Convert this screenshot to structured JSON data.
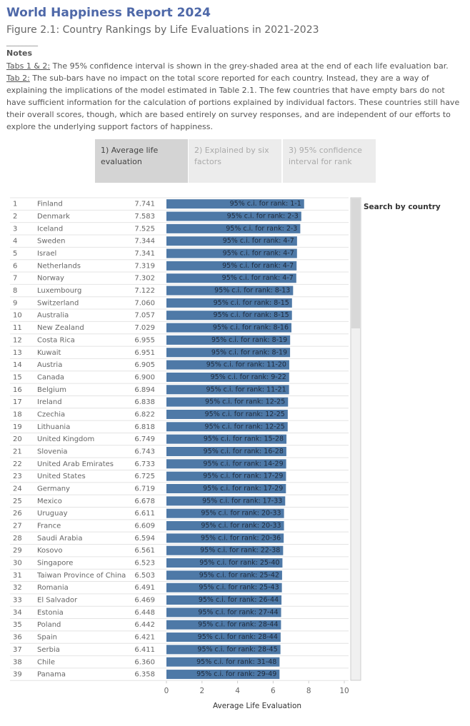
{
  "header": {
    "title": "World Happiness Report 2024",
    "subtitle": "Figure 2.1: Country Rankings by Life Evaluations in 2021-2023",
    "rule": "________"
  },
  "notes": {
    "title": "Notes",
    "items": [
      {
        "label": "Tabs 1 & 2:",
        "text": " The 95% confidence interval is shown in the grey-shaded area at the end of each life evaluation bar."
      },
      {
        "label": "Tab 2:",
        "text": " The sub-bars have no impact on the total score reported for each country. Instead, they are a way of explaining the implications of the model estimated in Table 2.1. The few countries that have empty bars do not have sufficient information for the calculation of portions explained by individual factors. These countries still have their overall scores, though, which are based entirely on survey responses, and are independent of our efforts to explore the underlying support factors of happiness."
      }
    ]
  },
  "tabs": [
    "1) Average life evaluation",
    "2) Explained by six factors",
    "3) 95% confidence interval for rank"
  ],
  "search_label": "Search by country",
  "chart_data": {
    "type": "bar",
    "orientation": "horizontal",
    "xlabel": "Average Life Evaluation",
    "xlim": [
      0,
      10
    ],
    "xticks": [
      0,
      2,
      4,
      6,
      8,
      10
    ],
    "color": "#4e79a7",
    "ranks": [
      1,
      2,
      3,
      4,
      5,
      6,
      7,
      8,
      9,
      10,
      11,
      12,
      13,
      14,
      15,
      16,
      17,
      18,
      19,
      20,
      21,
      22,
      23,
      24,
      25,
      26,
      27,
      28,
      29,
      30,
      31,
      32,
      33,
      34,
      35,
      36,
      37,
      38,
      39
    ],
    "categories": [
      "Finland",
      "Denmark",
      "Iceland",
      "Sweden",
      "Israel",
      "Netherlands",
      "Norway",
      "Luxembourg",
      "Switzerland",
      "Australia",
      "New Zealand",
      "Costa Rica",
      "Kuwait",
      "Austria",
      "Canada",
      "Belgium",
      "Ireland",
      "Czechia",
      "Lithuania",
      "United Kingdom",
      "Slovenia",
      "United Arab Emirates",
      "United States",
      "Germany",
      "Mexico",
      "Uruguay",
      "France",
      "Saudi Arabia",
      "Kosovo",
      "Singapore",
      "Taiwan Province of China",
      "Romania",
      "El Salvador",
      "Estonia",
      "Poland",
      "Spain",
      "Serbia",
      "Chile",
      "Panama"
    ],
    "values": [
      7.741,
      7.583,
      7.525,
      7.344,
      7.341,
      7.319,
      7.302,
      7.122,
      7.06,
      7.057,
      7.029,
      6.955,
      6.951,
      6.905,
      6.9,
      6.894,
      6.838,
      6.822,
      6.818,
      6.749,
      6.743,
      6.733,
      6.725,
      6.719,
      6.678,
      6.611,
      6.609,
      6.594,
      6.561,
      6.523,
      6.503,
      6.491,
      6.469,
      6.448,
      6.442,
      6.421,
      6.411,
      6.36,
      6.358
    ],
    "value_labels": [
      "7.741",
      "7.583",
      "7.525",
      "7.344",
      "7.341",
      "7.319",
      "7.302",
      "7.122",
      "7.060",
      "7.057",
      "7.029",
      "6.955",
      "6.951",
      "6.905",
      "6.900",
      "6.894",
      "6.838",
      "6.822",
      "6.818",
      "6.749",
      "6.743",
      "6.733",
      "6.725",
      "6.719",
      "6.678",
      "6.611",
      "6.609",
      "6.594",
      "6.561",
      "6.523",
      "6.503",
      "6.491",
      "6.469",
      "6.448",
      "6.442",
      "6.421",
      "6.411",
      "6.360",
      "6.358"
    ],
    "annotations": [
      "95% c.i. for rank: 1-1",
      "95% c.i. for rank: 2-3",
      "95% c.i. for rank: 2-3",
      "95% c.i. for rank: 4-7",
      "95% c.i. for rank: 4-7",
      "95% c.i. for rank: 4-7",
      "95% c.i. for rank: 4-7",
      "95% c.i. for rank: 8-13",
      "95% c.i. for rank: 8-15",
      "95% c.i. for rank: 8-15",
      "95% c.i. for rank: 8-16",
      "95% c.i. for rank: 8-19",
      "95% c.i. for rank: 8-19",
      "95% c.i. for rank: 11-20",
      "95% c.i. for rank: 9-22",
      "95% c.i. for rank: 11-21",
      "95% c.i. for rank: 12-25",
      "95% c.i. for rank: 12-25",
      "95% c.i. for rank: 12-25",
      "95% c.i. for rank: 15-28",
      "95% c.i. for rank: 16-28",
      "95% c.i. for rank: 14-29",
      "95% c.i. for rank: 17-29",
      "95% c.i. for rank: 17-29",
      "95% c.i. for rank: 17-33",
      "95% c.i. for rank: 20-33",
      "95% c.i. for rank: 20-33",
      "95% c.i. for rank: 20-36",
      "95% c.i. for rank: 22-38",
      "95% c.i. for rank: 25-40",
      "95% c.i. for rank: 25-42",
      "95% c.i. for rank: 25-43",
      "95% c.i. for rank: 26-44",
      "95% c.i. for rank: 27-44",
      "95% c.i. for rank: 28-44",
      "95% c.i. for rank: 28-44",
      "95% c.i. for rank: 28-45",
      "95% c.i. for rank: 31-48",
      "95% c.i. for rank: 29-49"
    ]
  }
}
